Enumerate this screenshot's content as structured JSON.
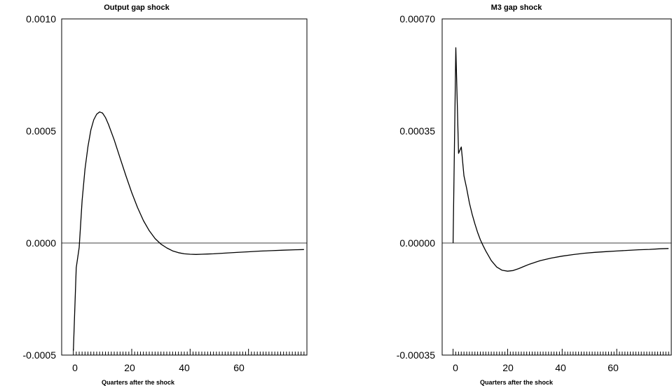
{
  "chart_data": [
    {
      "type": "line",
      "title": "Output gap shock",
      "xlabel": "Quarters after the shock",
      "ylabel": "",
      "xlim": [
        -4,
        80
      ],
      "ylim": [
        -0.0005,
        0.001
      ],
      "xticks": [
        0,
        20,
        40,
        60
      ],
      "xtick_labels": [
        "0",
        "20",
        "40",
        "60"
      ],
      "yticks": [
        -0.0005,
        0.0,
        0.0005,
        0.001
      ],
      "ytick_labels": [
        "-0.0005",
        "0.0000",
        "0.0005",
        "0.0010"
      ],
      "series": [
        {
          "x": [
            0,
            1,
            2,
            3,
            4,
            5,
            6,
            7,
            8,
            9,
            10,
            11,
            12,
            14,
            16,
            18,
            20,
            22,
            24,
            26,
            28,
            30,
            32,
            34,
            36,
            38,
            40,
            42,
            44,
            46,
            48,
            52,
            56,
            60,
            64,
            68,
            72,
            76,
            79
          ],
          "values": [
            -0.00048,
            -0.00011,
            -2e-05,
            0.00019,
            0.00033,
            0.00043,
            0.000505,
            0.00055,
            0.000575,
            0.000585,
            0.00058,
            0.00056,
            0.00053,
            0.00046,
            0.00038,
            0.0003,
            0.000225,
            0.000158,
            0.0001,
            5.5e-05,
            2e-05,
            -5e-06,
            -2.2e-05,
            -3.5e-05,
            -4.3e-05,
            -4.8e-05,
            -5e-05,
            -5.1e-05,
            -5e-05,
            -4.9e-05,
            -4.8e-05,
            -4.5e-05,
            -4.2e-05,
            -3.9e-05,
            -3.6e-05,
            -3.4e-05,
            -3.2e-05,
            -3e-05,
            -2.9e-05
          ]
        }
      ]
    },
    {
      "type": "line",
      "title": "M3 gap shock",
      "xlabel": "Quarters after the shock",
      "ylabel": "",
      "xlim": [
        -4,
        80
      ],
      "ylim": [
        -0.00035,
        0.0007
      ],
      "xticks": [
        0,
        20,
        40,
        60
      ],
      "xtick_labels": [
        "0",
        "20",
        "40",
        "60"
      ],
      "yticks": [
        -0.00035,
        0.0,
        0.00035,
        0.0007
      ],
      "ytick_labels": [
        "-0.00035",
        "0.00000",
        "0.00035",
        "0.00070"
      ],
      "series": [
        {
          "x": [
            0,
            1,
            2,
            3,
            4,
            5,
            6,
            7,
            8,
            9,
            10,
            11,
            12,
            14,
            16,
            18,
            20,
            22,
            24,
            26,
            28,
            32,
            36,
            40,
            44,
            48,
            52,
            56,
            60,
            64,
            68,
            72,
            76,
            79
          ],
          "values": [
            0.0,
            0.00061,
            0.00028,
            0.0003,
            0.00021,
            0.00017,
            0.000125,
            9e-05,
            6e-05,
            3.3e-05,
            1e-05,
            -8e-06,
            -2.5e-05,
            -5.5e-05,
            -7.5e-05,
            -8.5e-05,
            -8.8e-05,
            -8.6e-05,
            -8e-05,
            -7.3e-05,
            -6.6e-05,
            -5.5e-05,
            -4.7e-05,
            -4.1e-05,
            -3.6e-05,
            -3.2e-05,
            -2.9e-05,
            -2.7e-05,
            -2.5e-05,
            -2.3e-05,
            -2.1e-05,
            -2e-05,
            -1.8e-05,
            -1.7e-05
          ]
        }
      ]
    }
  ]
}
